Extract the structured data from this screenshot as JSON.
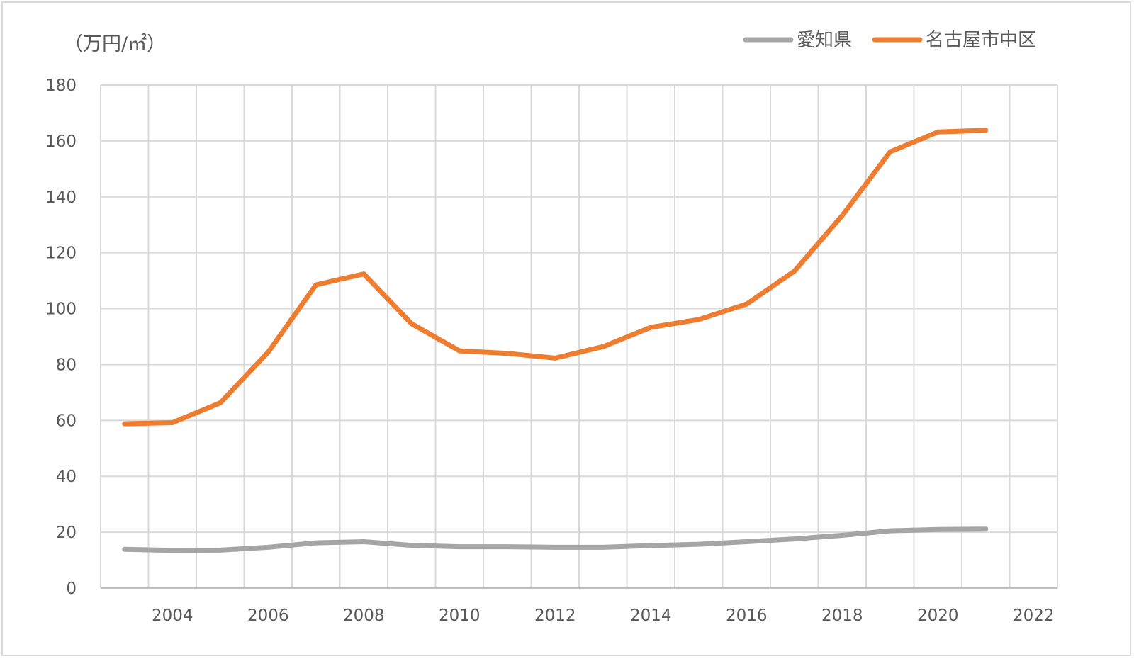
{
  "chart_data": {
    "type": "line",
    "unit_label": "（万円/㎡）",
    "x": [
      2003,
      2004,
      2005,
      2006,
      2007,
      2008,
      2009,
      2010,
      2011,
      2012,
      2013,
      2014,
      2015,
      2016,
      2017,
      2018,
      2019,
      2020,
      2021
    ],
    "x_ticks": [
      2004,
      2006,
      2008,
      2010,
      2012,
      2014,
      2016,
      2018,
      2020,
      2022
    ],
    "xlim": [
      2002.5,
      2022.5
    ],
    "ylim": [
      0,
      180
    ],
    "y_ticks": [
      0,
      20,
      40,
      60,
      80,
      100,
      120,
      140,
      160,
      180
    ],
    "grid": true,
    "legend_position": "top-right",
    "series": [
      {
        "name": "愛知県",
        "color": "#a5a5a5",
        "values": [
          13.9,
          13.5,
          13.6,
          14.6,
          16.2,
          16.6,
          15.3,
          14.8,
          14.8,
          14.6,
          14.6,
          15.2,
          15.7,
          16.6,
          17.6,
          18.9,
          20.5,
          21.0,
          21.1
        ]
      },
      {
        "name": "名古屋市中区",
        "color": "#ed7d31",
        "values": [
          58.8,
          59.2,
          66.3,
          84.4,
          108.5,
          112.4,
          94.6,
          84.9,
          84.0,
          82.3,
          86.4,
          93.3,
          96.1,
          101.6,
          113.4,
          133.3,
          156.1,
          163.2,
          163.8
        ]
      }
    ]
  }
}
